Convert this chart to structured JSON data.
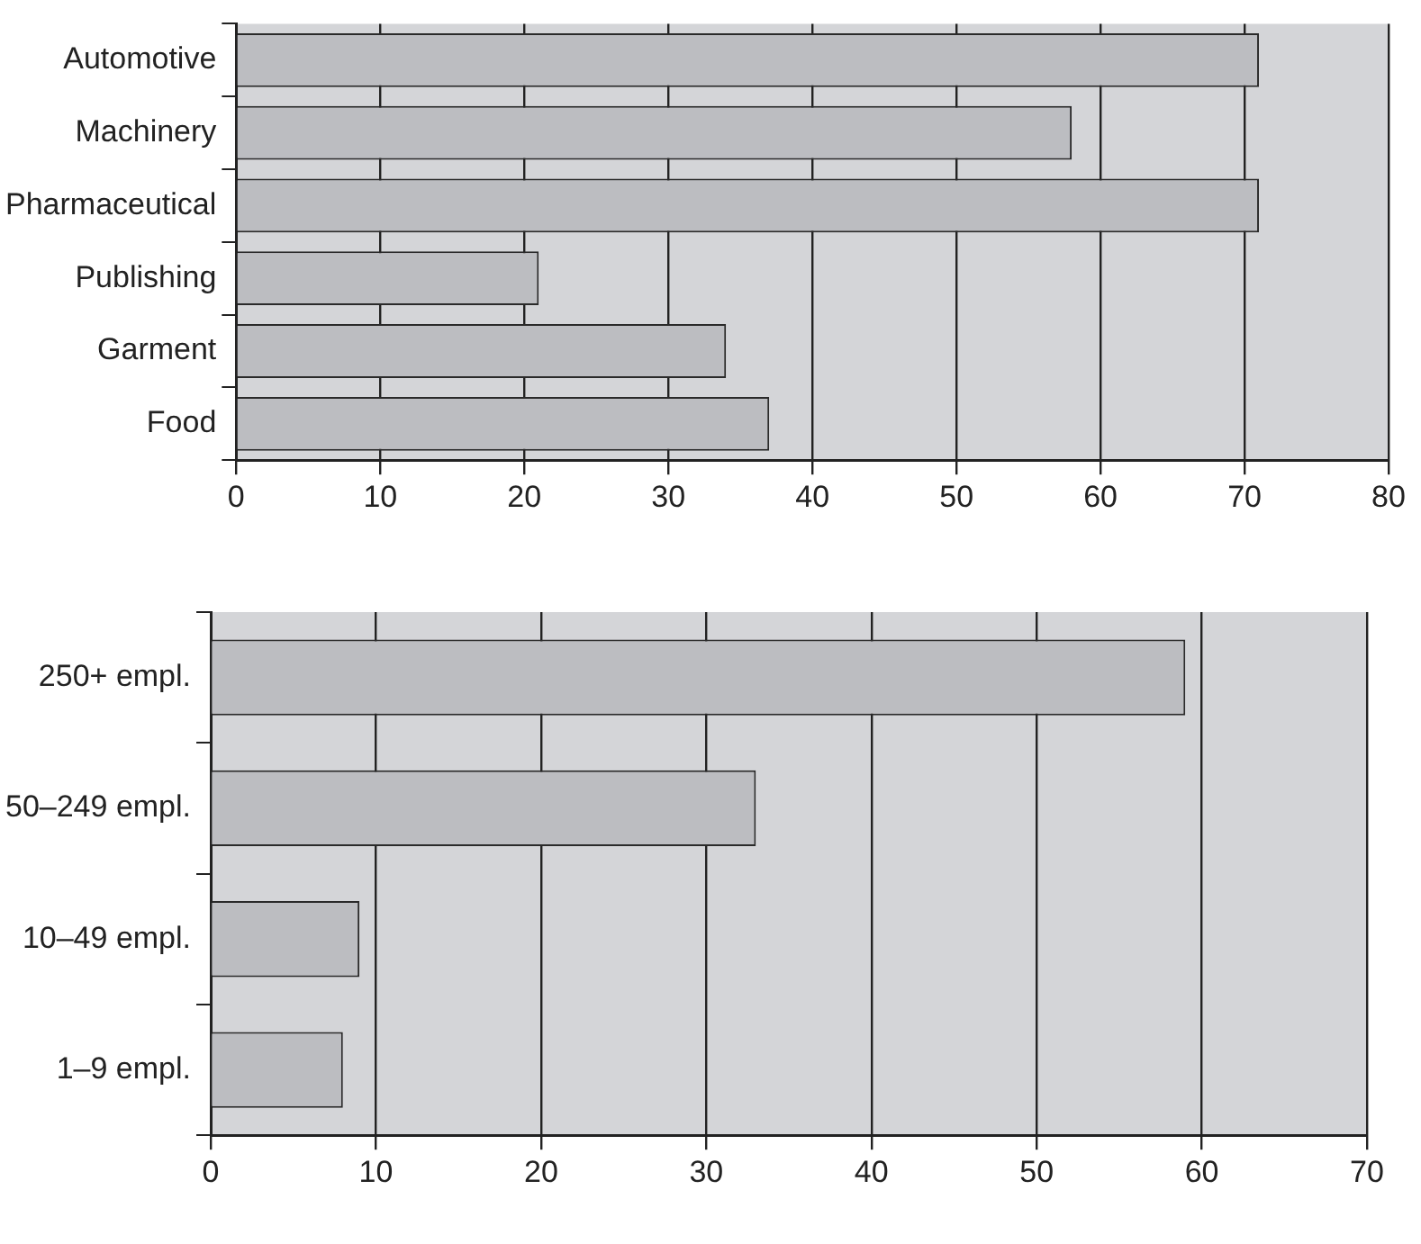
{
  "chart_data": [
    {
      "type": "bar",
      "orientation": "horizontal",
      "categories": [
        "Automotive",
        "Machinery",
        "Pharmaceutical",
        "Publishing",
        "Garment",
        "Food"
      ],
      "values": [
        71,
        58,
        71,
        21,
        34,
        37
      ],
      "color": "#bcbdc1",
      "xlim": [
        0,
        80
      ],
      "xticks": [
        0,
        10,
        20,
        30,
        40,
        50,
        60,
        70,
        80
      ],
      "grid": "x",
      "legend": false
    },
    {
      "type": "bar",
      "orientation": "horizontal",
      "categories": [
        "250+ empl.",
        "50–249 empl.",
        "10–49 empl.",
        "1–9 empl."
      ],
      "values": [
        59,
        33,
        9,
        8
      ],
      "color": "#bcbdc1",
      "xlim": [
        0,
        70
      ],
      "xticks": [
        0,
        10,
        20,
        30,
        40,
        50,
        60,
        70
      ],
      "grid": "x",
      "legend": false
    }
  ]
}
